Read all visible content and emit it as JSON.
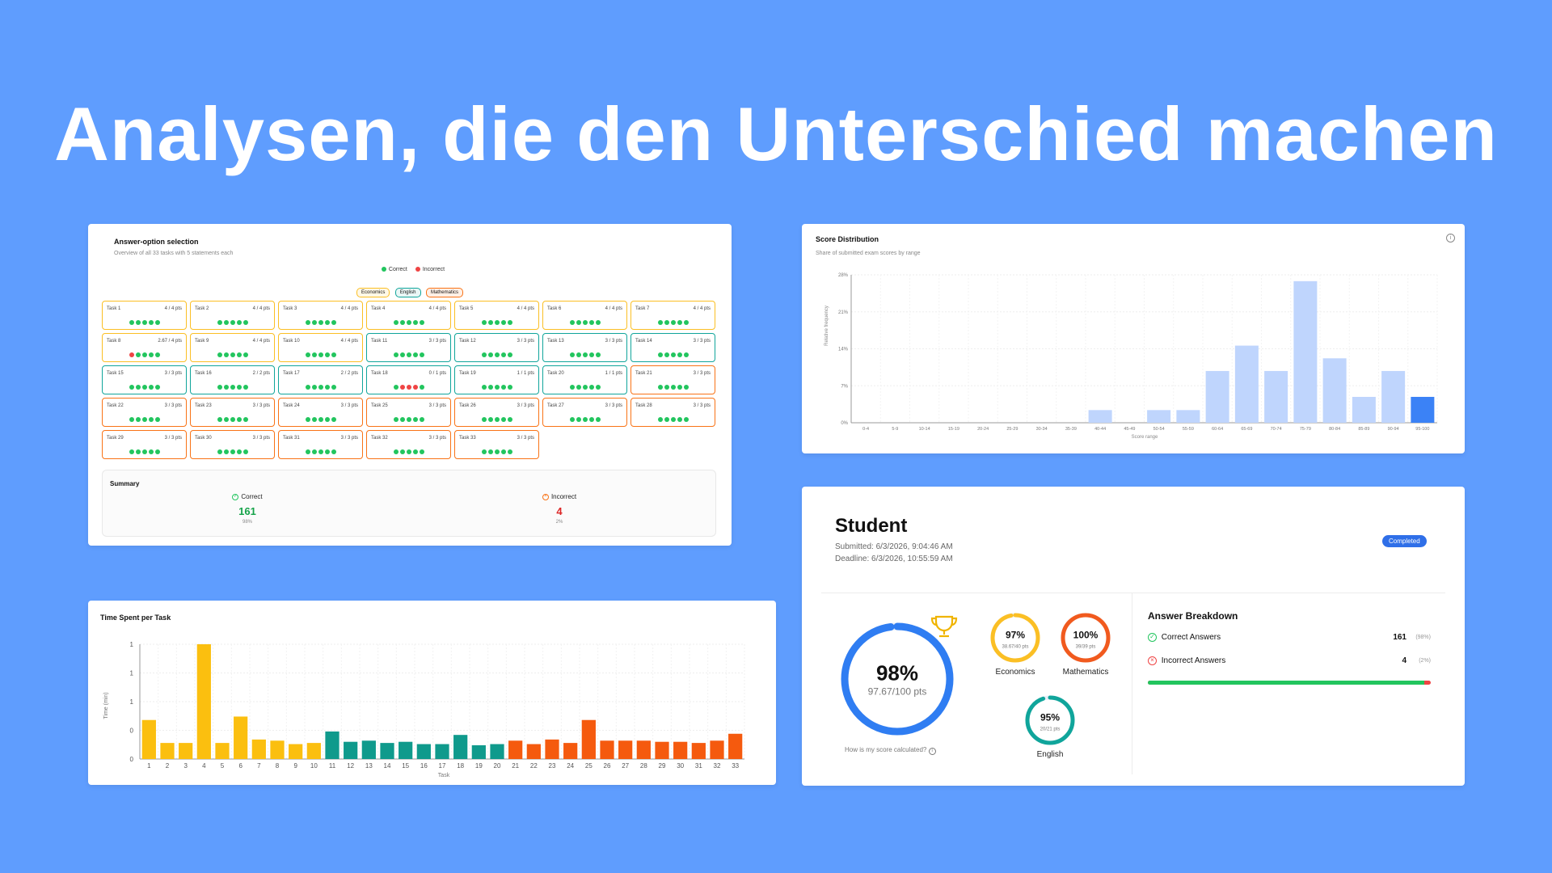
{
  "headline": "Analysen, die den Unterschied machen",
  "colors": {
    "background": "#5f9dfe",
    "economics": "#fbbf24",
    "english": "#10a59b",
    "mathematics": "#f97316",
    "correct": "#22c55e",
    "incorrect": "#ef4444",
    "hist_bar": "#bfd5fd",
    "hist_highlight": "#3b82f6"
  },
  "answer_card": {
    "title": "Answer-option selection",
    "subtitle": "Overview of all 33 tasks with 5 statements each",
    "legend_correct": "Correct",
    "legend_incorrect": "Incorrect",
    "chips": [
      "Economics",
      "English",
      "Mathematics"
    ],
    "tasks": [
      {
        "name": "Task 1",
        "pts": "4 / 4 pts",
        "subject": "economics",
        "dots": "ccccc"
      },
      {
        "name": "Task 2",
        "pts": "4 / 4 pts",
        "subject": "economics",
        "dots": "ccccc"
      },
      {
        "name": "Task 3",
        "pts": "4 / 4 pts",
        "subject": "economics",
        "dots": "ccccc"
      },
      {
        "name": "Task 4",
        "pts": "4 / 4 pts",
        "subject": "economics",
        "dots": "ccccc"
      },
      {
        "name": "Task 5",
        "pts": "4 / 4 pts",
        "subject": "economics",
        "dots": "ccccc"
      },
      {
        "name": "Task 6",
        "pts": "4 / 4 pts",
        "subject": "economics",
        "dots": "ccccc"
      },
      {
        "name": "Task 7",
        "pts": "4 / 4 pts",
        "subject": "economics",
        "dots": "ccccc"
      },
      {
        "name": "Task 8",
        "pts": "2.67 / 4 pts",
        "subject": "economics",
        "dots": "icccc"
      },
      {
        "name": "Task 9",
        "pts": "4 / 4 pts",
        "subject": "economics",
        "dots": "ccccc"
      },
      {
        "name": "Task 10",
        "pts": "4 / 4 pts",
        "subject": "economics",
        "dots": "ccccc"
      },
      {
        "name": "Task 11",
        "pts": "3 / 3 pts",
        "subject": "english",
        "dots": "ccccc"
      },
      {
        "name": "Task 12",
        "pts": "3 / 3 pts",
        "subject": "english",
        "dots": "ccccc"
      },
      {
        "name": "Task 13",
        "pts": "3 / 3 pts",
        "subject": "english",
        "dots": "ccccc"
      },
      {
        "name": "Task 14",
        "pts": "3 / 3 pts",
        "subject": "english",
        "dots": "ccccc"
      },
      {
        "name": "Task 15",
        "pts": "3 / 3 pts",
        "subject": "english",
        "dots": "ccccc"
      },
      {
        "name": "Task 16",
        "pts": "2 / 2 pts",
        "subject": "english",
        "dots": "ccccc"
      },
      {
        "name": "Task 17",
        "pts": "2 / 2 pts",
        "subject": "english",
        "dots": "ccccc"
      },
      {
        "name": "Task 18",
        "pts": "0 / 1 pts",
        "subject": "english",
        "dots": "ciiic"
      },
      {
        "name": "Task 19",
        "pts": "1 / 1 pts",
        "subject": "english",
        "dots": "ccccc"
      },
      {
        "name": "Task 20",
        "pts": "1 / 1 pts",
        "subject": "english",
        "dots": "ccccc"
      },
      {
        "name": "Task 21",
        "pts": "3 / 3 pts",
        "subject": "mathematics",
        "dots": "ccccc"
      },
      {
        "name": "Task 22",
        "pts": "3 / 3 pts",
        "subject": "mathematics",
        "dots": "ccccc"
      },
      {
        "name": "Task 23",
        "pts": "3 / 3 pts",
        "subject": "mathematics",
        "dots": "ccccc"
      },
      {
        "name": "Task 24",
        "pts": "3 / 3 pts",
        "subject": "mathematics",
        "dots": "ccccc"
      },
      {
        "name": "Task 25",
        "pts": "3 / 3 pts",
        "subject": "mathematics",
        "dots": "ccccc"
      },
      {
        "name": "Task 26",
        "pts": "3 / 3 pts",
        "subject": "mathematics",
        "dots": "ccccc"
      },
      {
        "name": "Task 27",
        "pts": "3 / 3 pts",
        "subject": "mathematics",
        "dots": "ccccc"
      },
      {
        "name": "Task 28",
        "pts": "3 / 3 pts",
        "subject": "mathematics",
        "dots": "ccccc"
      },
      {
        "name": "Task 29",
        "pts": "3 / 3 pts",
        "subject": "mathematics",
        "dots": "ccccc"
      },
      {
        "name": "Task 30",
        "pts": "3 / 3 pts",
        "subject": "mathematics",
        "dots": "ccccc"
      },
      {
        "name": "Task 31",
        "pts": "3 / 3 pts",
        "subject": "mathematics",
        "dots": "ccccc"
      },
      {
        "name": "Task 32",
        "pts": "3 / 3 pts",
        "subject": "mathematics",
        "dots": "ccccc"
      },
      {
        "name": "Task 33",
        "pts": "3 / 3 pts",
        "subject": "mathematics",
        "dots": "ccccc"
      }
    ],
    "summary": {
      "title": "Summary",
      "correct_label": "Correct",
      "correct_value": "161",
      "correct_pct": "98%",
      "incorrect_label": "Incorrect",
      "incorrect_value": "4",
      "incorrect_pct": "2%"
    }
  },
  "chart_data": [
    {
      "type": "bar",
      "title": "Time Spent per Task",
      "xlabel": "Task",
      "ylabel": "Time (min)",
      "y_tick_labels": [
        "0",
        "0",
        "1",
        "1",
        "1"
      ],
      "categories": [
        "1",
        "2",
        "3",
        "4",
        "5",
        "6",
        "7",
        "8",
        "9",
        "10",
        "11",
        "12",
        "13",
        "14",
        "15",
        "16",
        "17",
        "18",
        "19",
        "20",
        "21",
        "22",
        "23",
        "24",
        "25",
        "26",
        "27",
        "28",
        "29",
        "30",
        "31",
        "32",
        "33"
      ],
      "values": [
        0.34,
        0.14,
        0.14,
        1.0,
        0.14,
        0.37,
        0.17,
        0.16,
        0.13,
        0.14,
        0.24,
        0.15,
        0.16,
        0.14,
        0.15,
        0.13,
        0.13,
        0.21,
        0.12,
        0.13,
        0.16,
        0.13,
        0.17,
        0.14,
        0.34,
        0.16,
        0.16,
        0.16,
        0.15,
        0.15,
        0.14,
        0.16,
        0.22
      ],
      "subjects": [
        "economics",
        "economics",
        "economics",
        "economics",
        "economics",
        "economics",
        "economics",
        "economics",
        "economics",
        "economics",
        "english",
        "english",
        "english",
        "english",
        "english",
        "english",
        "english",
        "english",
        "english",
        "english",
        "mathematics",
        "mathematics",
        "mathematics",
        "mathematics",
        "mathematics",
        "mathematics",
        "mathematics",
        "mathematics",
        "mathematics",
        "mathematics",
        "mathematics",
        "mathematics",
        "mathematics"
      ],
      "ylim": [
        0,
        1
      ],
      "grid": true
    },
    {
      "type": "bar",
      "title": "Score Distribution",
      "subtitle": "Share of submitted exam scores by range",
      "xlabel": "Score range",
      "ylabel": "Relative frequency",
      "y_tick_labels": [
        "0%",
        "7%",
        "14%",
        "21%",
        "28%"
      ],
      "categories": [
        "0-4",
        "5-9",
        "10-14",
        "15-19",
        "20-24",
        "25-29",
        "30-34",
        "35-39",
        "40-44",
        "45-49",
        "50-54",
        "55-59",
        "60-64",
        "65-69",
        "70-74",
        "75-79",
        "80-84",
        "85-89",
        "90-94",
        "95-100"
      ],
      "values": [
        0,
        0,
        0,
        0,
        0,
        0,
        0,
        0,
        2.4,
        0,
        2.4,
        2.4,
        9.8,
        14.6,
        9.8,
        26.8,
        12.2,
        4.9,
        9.8,
        4.9
      ],
      "highlight": "95-100",
      "ylim": [
        0,
        28
      ],
      "grid": true
    }
  ],
  "student": {
    "name": "Student",
    "submitted": "Submitted: 6/3/2026, 9:04:46 AM",
    "deadline": "Deadline: 6/3/2026, 10:55:59 AM",
    "status": "Completed",
    "overall_pct": "98%",
    "overall_pts": "97.67/100 pts",
    "overall_value": 0.98,
    "how_calc": "How is my score calculated?",
    "subjects": [
      {
        "name": "Economics",
        "pct": "97%",
        "pts": "38.67/40 pts",
        "value": 0.97,
        "color": "#fbbf24"
      },
      {
        "name": "Mathematics",
        "pct": "100%",
        "pts": "39/39 pts",
        "value": 1.0,
        "color": "#f15a1e"
      },
      {
        "name": "English",
        "pct": "95%",
        "pts": "20/21 pts",
        "value": 0.95,
        "color": "#10a59b"
      }
    ],
    "breakdown": {
      "title": "Answer Breakdown",
      "correct_label": "Correct Answers",
      "correct_value": "161",
      "correct_pct": "(98%)",
      "incorrect_label": "Incorrect Answers",
      "incorrect_value": "4",
      "incorrect_pct": "(2%)",
      "correct_fraction": 0.976
    }
  }
}
